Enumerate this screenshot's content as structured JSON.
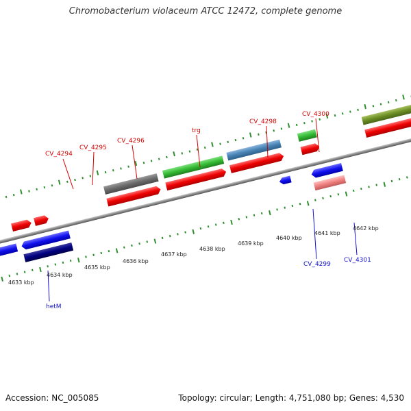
{
  "title": "Chromobacterium violaceum ATCC 12472, complete genome",
  "footer": {
    "accession": "Accession: NC_005085",
    "topology": "Topology: circular; Length: 4,751,080 bp; Genes: 4,530"
  },
  "colors": {
    "backbone": "#8a8a8a",
    "tick": "#2f8f2f",
    "label_top": "#d40000",
    "label_bottom": "#1010cc"
  },
  "ruler": {
    "unit": "kbp",
    "ticks": [
      {
        "label": "4633 kbp"
      },
      {
        "label": "4634 kbp"
      },
      {
        "label": "4635 kbp"
      },
      {
        "label": "4636 kbp"
      },
      {
        "label": "4637 kbp"
      },
      {
        "label": "4638 kbp"
      },
      {
        "label": "4639 kbp"
      },
      {
        "label": "4640 kbp"
      },
      {
        "label": "4641 kbp"
      },
      {
        "label": "4642 kbp"
      }
    ]
  },
  "gene_labels": {
    "top": [
      "CV_4294",
      "CV_4295",
      "CV_4296",
      "trg",
      "CV_4298",
      "CV_4300"
    ],
    "bottom": [
      "hetM",
      "CV_4299",
      "CV_4301"
    ]
  }
}
